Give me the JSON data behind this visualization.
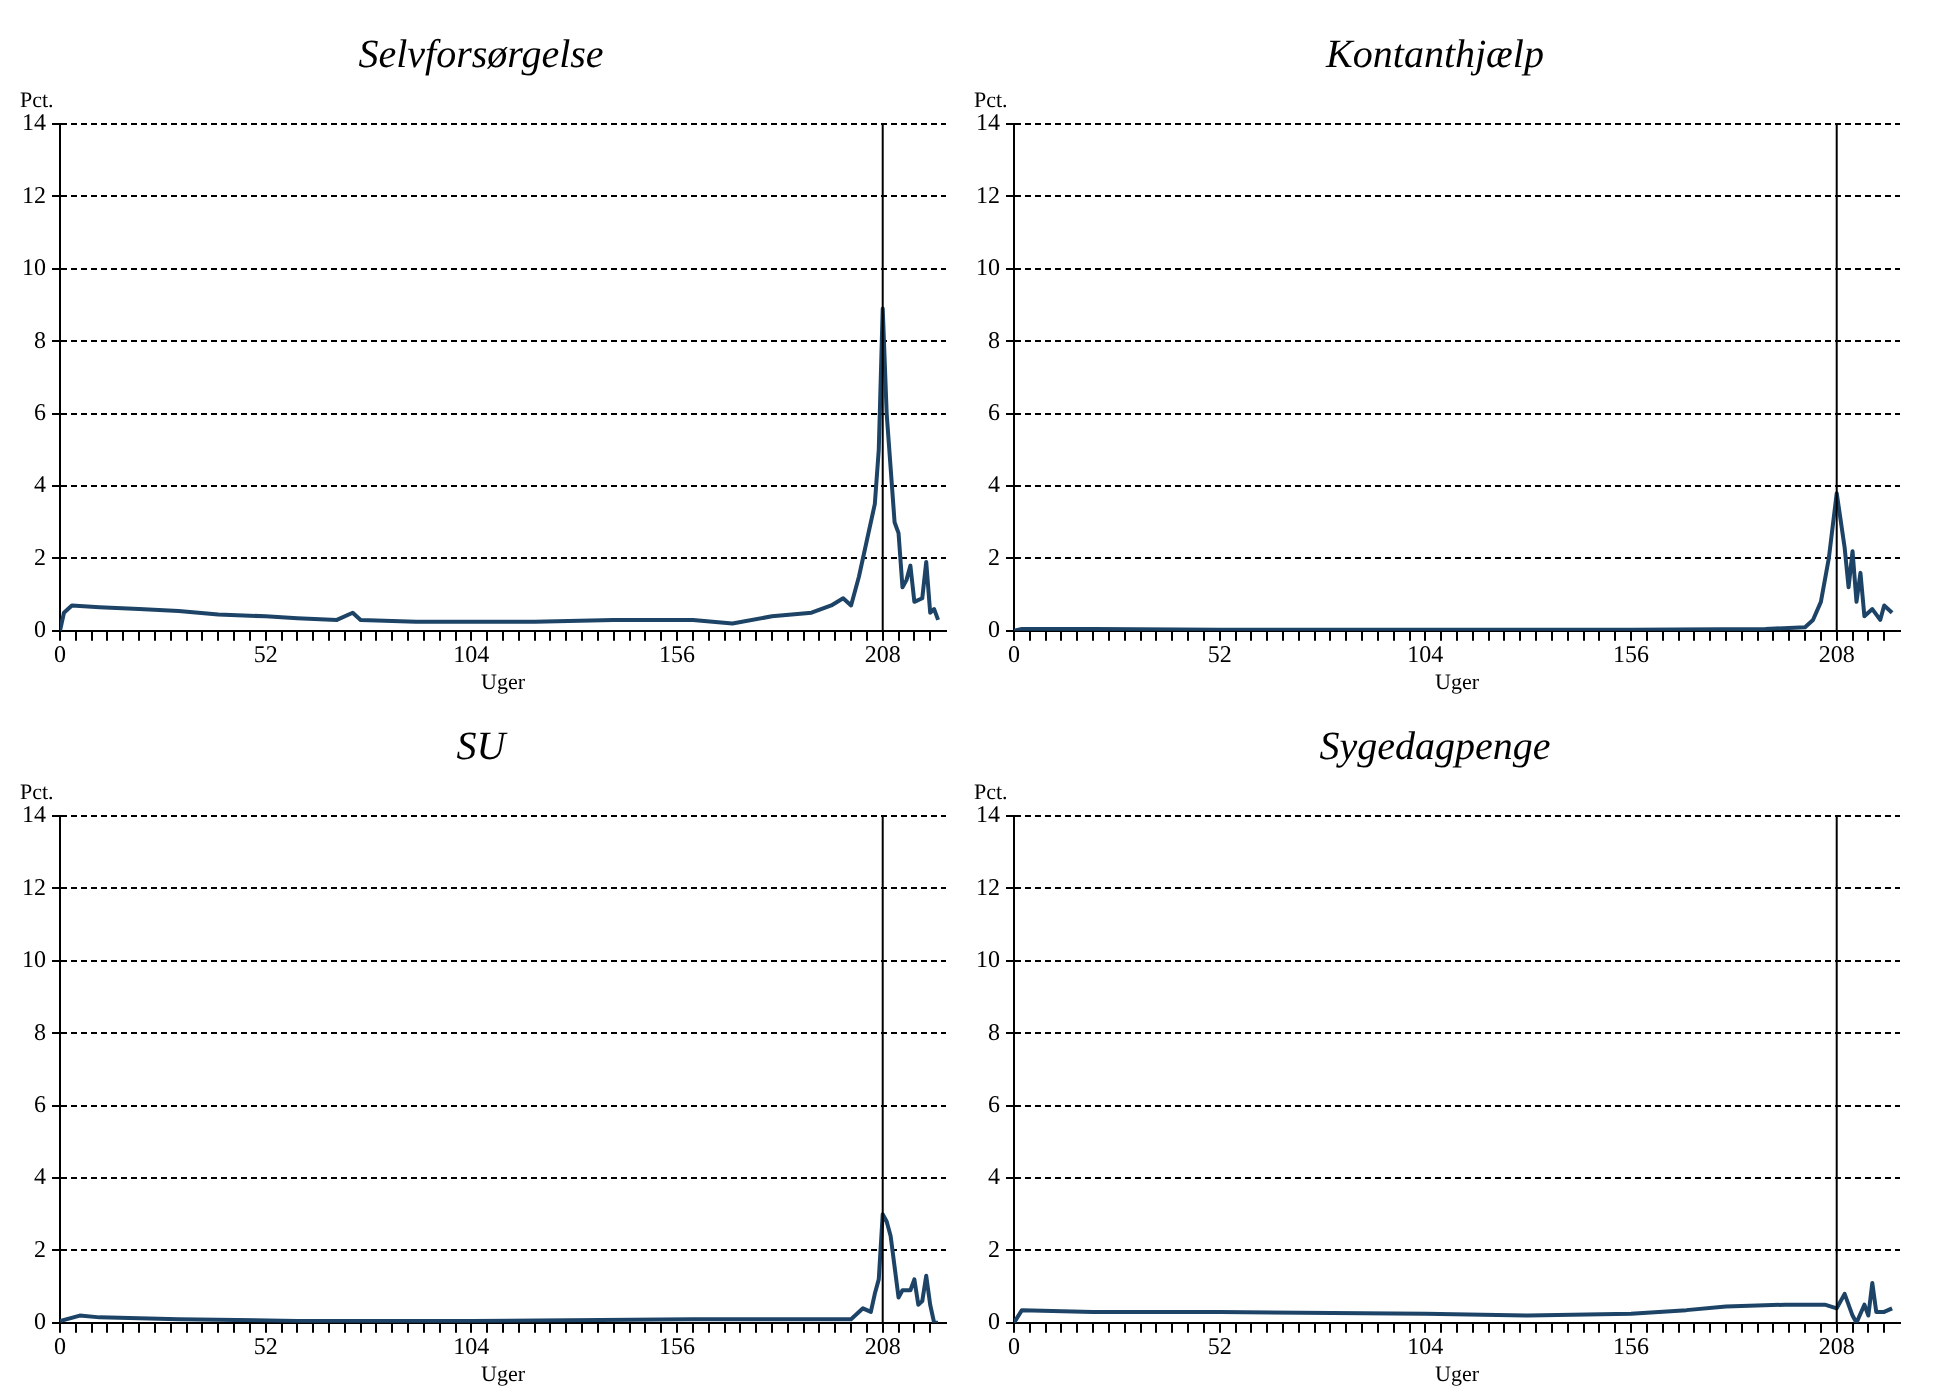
{
  "chart_data": [
    {
      "type": "line",
      "title": "Selvforsørgelse",
      "xlabel": "Uger",
      "ylabel": "Pct.",
      "xlim": [
        0,
        224
      ],
      "ylim": [
        0,
        14
      ],
      "yticks": [
        0,
        2,
        4,
        6,
        8,
        10,
        12,
        14
      ],
      "xticks": [
        0,
        {
          "value": 4,
          "label": null
        },
        {
          "value": 8,
          "label": null
        },
        {
          "value": 12,
          "label": null
        },
        {
          "value": 16,
          "label": null
        },
        {
          "value": 20,
          "label": null
        },
        {
          "value": 24,
          "label": null
        },
        {
          "value": 28,
          "label": null
        },
        {
          "value": 32,
          "label": null
        },
        {
          "value": 36,
          "label": null
        },
        {
          "value": 40,
          "label": null
        },
        {
          "value": 44,
          "label": null
        },
        {
          "value": 48,
          "label": null
        },
        52,
        {
          "value": 56,
          "label": null
        },
        {
          "value": 60,
          "label": null
        },
        {
          "value": 64,
          "label": null
        },
        {
          "value": 68,
          "label": null
        },
        {
          "value": 72,
          "label": null
        },
        {
          "value": 76,
          "label": null
        },
        {
          "value": 80,
          "label": null
        },
        {
          "value": 84,
          "label": null
        },
        {
          "value": 88,
          "label": null
        },
        {
          "value": 92,
          "label": null
        },
        {
          "value": 96,
          "label": null
        },
        {
          "value": 100,
          "label": null
        },
        104,
        {
          "value": 108,
          "label": null
        },
        {
          "value": 112,
          "label": null
        },
        {
          "value": 116,
          "label": null
        },
        {
          "value": 120,
          "label": null
        },
        {
          "value": 124,
          "label": null
        },
        {
          "value": 128,
          "label": null
        },
        {
          "value": 132,
          "label": null
        },
        {
          "value": 136,
          "label": null
        },
        {
          "value": 140,
          "label": null
        },
        {
          "value": 144,
          "label": null
        },
        {
          "value": 148,
          "label": null
        },
        {
          "value": 152,
          "label": null
        },
        156,
        {
          "value": 160,
          "label": null
        },
        {
          "value": 164,
          "label": null
        },
        {
          "value": 168,
          "label": null
        },
        {
          "value": 172,
          "label": null
        },
        {
          "value": 176,
          "label": null
        },
        {
          "value": 180,
          "label": null
        },
        {
          "value": 184,
          "label": null
        },
        {
          "value": 188,
          "label": null
        },
        {
          "value": 192,
          "label": null
        },
        {
          "value": 196,
          "label": null
        },
        {
          "value": 200,
          "label": null
        },
        {
          "value": 204,
          "label": null
        },
        208,
        {
          "value": 212,
          "label": null
        },
        {
          "value": 216,
          "label": null
        },
        {
          "value": 220,
          "label": null
        }
      ],
      "grid": "y",
      "legend": false,
      "ref_lines": [
        {
          "axis": "x",
          "value": 208,
          "color": "#000000"
        }
      ],
      "series": [
        {
          "color": "#1d4466",
          "x": [
            0,
            1,
            3,
            10,
            20,
            30,
            40,
            52,
            60,
            70,
            74,
            76,
            90,
            104,
            120,
            140,
            160,
            170,
            180,
            190,
            195,
            198,
            200,
            202,
            204,
            206,
            207,
            208,
            209,
            210,
            211,
            212,
            213,
            214,
            215,
            216,
            218,
            219,
            220,
            221,
            222
          ],
          "values": [
            0,
            0.5,
            0.7,
            0.65,
            0.6,
            0.55,
            0.45,
            0.4,
            0.35,
            0.3,
            0.5,
            0.3,
            0.25,
            0.25,
            0.25,
            0.3,
            0.3,
            0.2,
            0.4,
            0.5,
            0.7,
            0.9,
            0.7,
            1.5,
            2.5,
            3.5,
            5,
            8.9,
            6,
            4.5,
            3,
            2.7,
            1.2,
            1.4,
            1.8,
            0.8,
            0.9,
            1.9,
            0.5,
            0.6,
            0.3
          ]
        }
      ]
    },
    {
      "type": "line",
      "title": "Kontanthjælp",
      "xlabel": "Uger",
      "ylabel": "Pct.",
      "xlim": [
        0,
        224
      ],
      "ylim": [
        0,
        14
      ],
      "yticks": [
        0,
        2,
        4,
        6,
        8,
        10,
        12,
        14
      ],
      "xticks": [
        0,
        {
          "value": 4,
          "label": null
        },
        {
          "value": 8,
          "label": null
        },
        {
          "value": 12,
          "label": null
        },
        {
          "value": 16,
          "label": null
        },
        {
          "value": 20,
          "label": null
        },
        {
          "value": 24,
          "label": null
        },
        {
          "value": 28,
          "label": null
        },
        {
          "value": 32,
          "label": null
        },
        {
          "value": 36,
          "label": null
        },
        {
          "value": 40,
          "label": null
        },
        {
          "value": 44,
          "label": null
        },
        {
          "value": 48,
          "label": null
        },
        52,
        {
          "value": 56,
          "label": null
        },
        {
          "value": 60,
          "label": null
        },
        {
          "value": 64,
          "label": null
        },
        {
          "value": 68,
          "label": null
        },
        {
          "value": 72,
          "label": null
        },
        {
          "value": 76,
          "label": null
        },
        {
          "value": 80,
          "label": null
        },
        {
          "value": 84,
          "label": null
        },
        {
          "value": 88,
          "label": null
        },
        {
          "value": 92,
          "label": null
        },
        {
          "value": 96,
          "label": null
        },
        {
          "value": 100,
          "label": null
        },
        104,
        {
          "value": 108,
          "label": null
        },
        {
          "value": 112,
          "label": null
        },
        {
          "value": 116,
          "label": null
        },
        {
          "value": 120,
          "label": null
        },
        {
          "value": 124,
          "label": null
        },
        {
          "value": 128,
          "label": null
        },
        {
          "value": 132,
          "label": null
        },
        {
          "value": 136,
          "label": null
        },
        {
          "value": 140,
          "label": null
        },
        {
          "value": 144,
          "label": null
        },
        {
          "value": 148,
          "label": null
        },
        {
          "value": 152,
          "label": null
        },
        156,
        {
          "value": 160,
          "label": null
        },
        {
          "value": 164,
          "label": null
        },
        {
          "value": 168,
          "label": null
        },
        {
          "value": 172,
          "label": null
        },
        {
          "value": 176,
          "label": null
        },
        {
          "value": 180,
          "label": null
        },
        {
          "value": 184,
          "label": null
        },
        {
          "value": 188,
          "label": null
        },
        {
          "value": 192,
          "label": null
        },
        {
          "value": 196,
          "label": null
        },
        {
          "value": 200,
          "label": null
        },
        {
          "value": 204,
          "label": null
        },
        208,
        {
          "value": 212,
          "label": null
        },
        {
          "value": 216,
          "label": null
        },
        {
          "value": 220,
          "label": null
        }
      ],
      "grid": "y",
      "legend": false,
      "ref_lines": [
        {
          "axis": "x",
          "value": 208,
          "color": "#000000"
        }
      ],
      "series": [
        {
          "color": "#1d4466",
          "x": [
            0,
            2,
            20,
            52,
            104,
            156,
            190,
            200,
            202,
            204,
            206,
            208,
            210,
            211,
            212,
            213,
            214,
            215,
            217,
            219,
            220,
            222
          ],
          "values": [
            0,
            0.05,
            0.05,
            0.03,
            0.03,
            0.03,
            0.05,
            0.1,
            0.3,
            0.8,
            2,
            3.8,
            2.3,
            1.2,
            2.2,
            0.8,
            1.6,
            0.4,
            0.6,
            0.3,
            0.7,
            0.5
          ]
        }
      ]
    },
    {
      "type": "line",
      "title": "SU",
      "xlabel": "Uger",
      "ylabel": "Pct.",
      "xlim": [
        0,
        224
      ],
      "ylim": [
        0,
        14
      ],
      "yticks": [
        0,
        2,
        4,
        6,
        8,
        10,
        12,
        14
      ],
      "xticks": [
        0,
        {
          "value": 4,
          "label": null
        },
        {
          "value": 8,
          "label": null
        },
        {
          "value": 12,
          "label": null
        },
        {
          "value": 16,
          "label": null
        },
        {
          "value": 20,
          "label": null
        },
        {
          "value": 24,
          "label": null
        },
        {
          "value": 28,
          "label": null
        },
        {
          "value": 32,
          "label": null
        },
        {
          "value": 36,
          "label": null
        },
        {
          "value": 40,
          "label": null
        },
        {
          "value": 44,
          "label": null
        },
        {
          "value": 48,
          "label": null
        },
        52,
        {
          "value": 56,
          "label": null
        },
        {
          "value": 60,
          "label": null
        },
        {
          "value": 64,
          "label": null
        },
        {
          "value": 68,
          "label": null
        },
        {
          "value": 72,
          "label": null
        },
        {
          "value": 76,
          "label": null
        },
        {
          "value": 80,
          "label": null
        },
        {
          "value": 84,
          "label": null
        },
        {
          "value": 88,
          "label": null
        },
        {
          "value": 92,
          "label": null
        },
        {
          "value": 96,
          "label": null
        },
        {
          "value": 100,
          "label": null
        },
        104,
        {
          "value": 108,
          "label": null
        },
        {
          "value": 112,
          "label": null
        },
        {
          "value": 116,
          "label": null
        },
        {
          "value": 120,
          "label": null
        },
        {
          "value": 124,
          "label": null
        },
        {
          "value": 128,
          "label": null
        },
        {
          "value": 132,
          "label": null
        },
        {
          "value": 136,
          "label": null
        },
        {
          "value": 140,
          "label": null
        },
        {
          "value": 144,
          "label": null
        },
        {
          "value": 148,
          "label": null
        },
        {
          "value": 152,
          "label": null
        },
        156,
        {
          "value": 160,
          "label": null
        },
        {
          "value": 164,
          "label": null
        },
        {
          "value": 168,
          "label": null
        },
        {
          "value": 172,
          "label": null
        },
        {
          "value": 176,
          "label": null
        },
        {
          "value": 180,
          "label": null
        },
        {
          "value": 184,
          "label": null
        },
        {
          "value": 188,
          "label": null
        },
        {
          "value": 192,
          "label": null
        },
        {
          "value": 196,
          "label": null
        },
        {
          "value": 200,
          "label": null
        },
        {
          "value": 204,
          "label": null
        },
        208,
        {
          "value": 212,
          "label": null
        },
        {
          "value": 216,
          "label": null
        },
        {
          "value": 220,
          "label": null
        }
      ],
      "grid": "y",
      "legend": false,
      "ref_lines": [
        {
          "axis": "x",
          "value": 208,
          "color": "#000000"
        }
      ],
      "series": [
        {
          "color": "#1d4466",
          "x": [
            0,
            5,
            10,
            30,
            60,
            104,
            160,
            200,
            203,
            205,
            206,
            207,
            208,
            209,
            210,
            212,
            213,
            215,
            216,
            217,
            218,
            219,
            220,
            221,
            222
          ],
          "values": [
            0.05,
            0.2,
            0.15,
            0.1,
            0.05,
            0.05,
            0.1,
            0.1,
            0.4,
            0.3,
            0.8,
            1.2,
            3,
            2.8,
            2.4,
            0.7,
            0.9,
            0.9,
            1.2,
            0.5,
            0.6,
            1.3,
            0.5,
            0,
            0
          ]
        }
      ]
    },
    {
      "type": "line",
      "title": "Sygedagpenge",
      "xlabel": "Uger",
      "ylabel": "Pct.",
      "xlim": [
        0,
        224
      ],
      "ylim": [
        0,
        14
      ],
      "yticks": [
        0,
        2,
        4,
        6,
        8,
        10,
        12,
        14
      ],
      "xticks": [
        0,
        {
          "value": 4,
          "label": null
        },
        {
          "value": 8,
          "label": null
        },
        {
          "value": 12,
          "label": null
        },
        {
          "value": 16,
          "label": null
        },
        {
          "value": 20,
          "label": null
        },
        {
          "value": 24,
          "label": null
        },
        {
          "value": 28,
          "label": null
        },
        {
          "value": 32,
          "label": null
        },
        {
          "value": 36,
          "label": null
        },
        {
          "value": 40,
          "label": null
        },
        {
          "value": 44,
          "label": null
        },
        {
          "value": 48,
          "label": null
        },
        52,
        {
          "value": 56,
          "label": null
        },
        {
          "value": 60,
          "label": null
        },
        {
          "value": 64,
          "label": null
        },
        {
          "value": 68,
          "label": null
        },
        {
          "value": 72,
          "label": null
        },
        {
          "value": 76,
          "label": null
        },
        {
          "value": 80,
          "label": null
        },
        {
          "value": 84,
          "label": null
        },
        {
          "value": 88,
          "label": null
        },
        {
          "value": 92,
          "label": null
        },
        {
          "value": 96,
          "label": null
        },
        {
          "value": 100,
          "label": null
        },
        104,
        {
          "value": 108,
          "label": null
        },
        {
          "value": 112,
          "label": null
        },
        {
          "value": 116,
          "label": null
        },
        {
          "value": 120,
          "label": null
        },
        {
          "value": 124,
          "label": null
        },
        {
          "value": 128,
          "label": null
        },
        {
          "value": 132,
          "label": null
        },
        {
          "value": 136,
          "label": null
        },
        {
          "value": 140,
          "label": null
        },
        {
          "value": 144,
          "label": null
        },
        {
          "value": 148,
          "label": null
        },
        {
          "value": 152,
          "label": null
        },
        156,
        {
          "value": 160,
          "label": null
        },
        {
          "value": 164,
          "label": null
        },
        {
          "value": 168,
          "label": null
        },
        {
          "value": 172,
          "label": null
        },
        {
          "value": 176,
          "label": null
        },
        {
          "value": 180,
          "label": null
        },
        {
          "value": 184,
          "label": null
        },
        {
          "value": 188,
          "label": null
        },
        {
          "value": 192,
          "label": null
        },
        {
          "value": 196,
          "label": null
        },
        {
          "value": 200,
          "label": null
        },
        {
          "value": 204,
          "label": null
        },
        208,
        {
          "value": 212,
          "label": null
        },
        {
          "value": 216,
          "label": null
        },
        {
          "value": 220,
          "label": null
        }
      ],
      "grid": "y",
      "legend": false,
      "ref_lines": [
        {
          "axis": "x",
          "value": 208,
          "color": "#000000"
        }
      ],
      "series": [
        {
          "color": "#1d4466",
          "x": [
            0,
            2,
            20,
            52,
            104,
            130,
            156,
            170,
            180,
            195,
            205,
            208,
            210,
            212,
            213,
            215,
            216,
            217,
            218,
            220,
            222
          ],
          "values": [
            0,
            0.35,
            0.3,
            0.3,
            0.25,
            0.2,
            0.25,
            0.35,
            0.45,
            0.5,
            0.5,
            0.4,
            0.8,
            0.2,
            0,
            0.5,
            0.2,
            1.1,
            0.3,
            0.3,
            0.4
          ]
        }
      ]
    }
  ]
}
